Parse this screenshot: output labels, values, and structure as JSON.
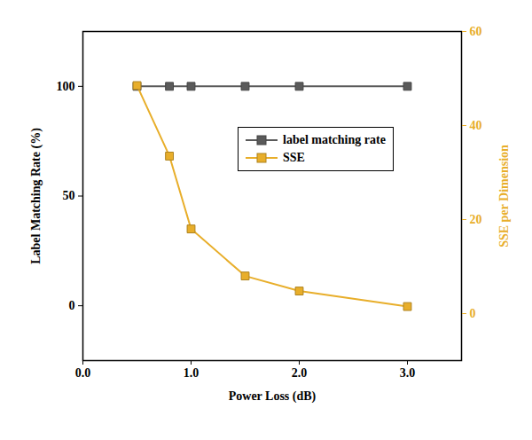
{
  "chart_data": {
    "type": "line",
    "x_label": "Power Loss (dB)",
    "y_label": "Label Matching Rate (%)",
    "y2_label": "SSE per Dimension",
    "xlim": [
      0,
      3.5
    ],
    "xticks": [
      0,
      1,
      2,
      3
    ],
    "ylim": [
      -25,
      125
    ],
    "yticks": [
      0,
      50,
      100
    ],
    "y2lim": [
      -10,
      60
    ],
    "y2ticks": [
      0,
      20,
      40,
      60
    ],
    "legend": "right",
    "series": [
      {
        "name": "label matching rate",
        "color": "#5a5a5a",
        "marker": "square",
        "line_style": "solid",
        "x": [
          0.5,
          0.8,
          1,
          1.5,
          2,
          3
        ],
        "values": [
          100,
          100,
          100,
          100,
          100,
          100
        ]
      },
      {
        "name": "SSE",
        "color": "#e8ae2a",
        "marker": "square",
        "line_style": "solid",
        "axis": "y2",
        "x": [
          0.5,
          0.8,
          1,
          1.5,
          2,
          3
        ],
        "values": [
          48.5,
          33.5,
          18,
          8,
          4.8,
          1.5
        ]
      }
    ]
  }
}
